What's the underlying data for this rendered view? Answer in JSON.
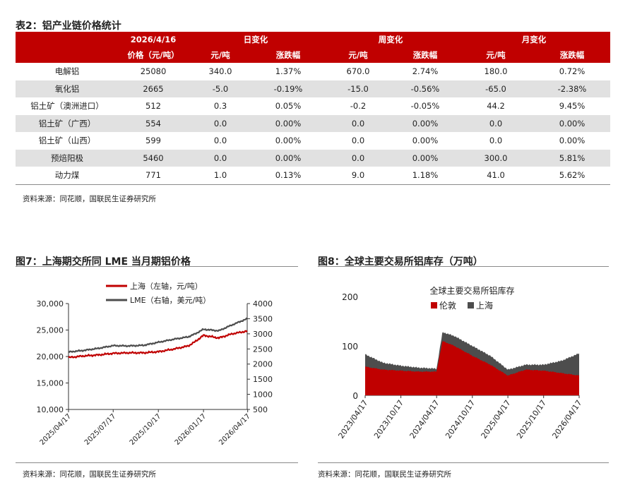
{
  "table": {
    "title": "表2：铝产业链价格统计",
    "header1": [
      "2026/4/16",
      "日变化",
      "周变化",
      "月变化"
    ],
    "header2": [
      "价格（元/吨）",
      "元/吨",
      "涨跌幅",
      "元/吨",
      "涨跌幅",
      "元/吨",
      "涨跌幅"
    ],
    "rows": [
      [
        "电解铝",
        "25080",
        "340.0",
        "1.37%",
        "670.0",
        "2.74%",
        "180.0",
        "0.72%"
      ],
      [
        "氧化铝",
        "2665",
        "-5.0",
        "-0.19%",
        "-15.0",
        "-0.56%",
        "-65.0",
        "-2.38%"
      ],
      [
        "铝土矿（澳洲进口）",
        "512",
        "0.3",
        "0.05%",
        "-0.2",
        "-0.05%",
        "44.2",
        "9.45%"
      ],
      [
        "铝土矿（广西）",
        "554",
        "0.0",
        "0.00%",
        "0.0",
        "0.00%",
        "0.0",
        "0.00%"
      ],
      [
        "铝土矿（山西）",
        "599",
        "0.0",
        "0.00%",
        "0.0",
        "0.00%",
        "0.0",
        "0.00%"
      ],
      [
        "预焙阳极",
        "5460",
        "0.0",
        "0.00%",
        "0.0",
        "0.00%",
        "300.0",
        "5.81%"
      ],
      [
        "动力煤",
        "771",
        "1.0",
        "0.13%",
        "9.0",
        "1.18%",
        "41.0",
        "5.62%"
      ]
    ],
    "source": "资料来源：同花顺，国联民生证券研究所"
  },
  "fig7": {
    "title": "图7：上海期交所同 LME 当月期铝价格",
    "source": "资料来源：同花顺，国联民生证券研究所"
  },
  "fig8": {
    "title": "图8：全球主要交易所铝库存（万吨）",
    "source": "资料来源：同花顺，国联民生证券研究所"
  },
  "colors": {
    "red": "#c00000",
    "gray": "#4d4d4d",
    "zebra": "#e1e1e1"
  },
  "chart_data": [
    {
      "type": "line",
      "title": "",
      "x": [
        "2025/04/17",
        "2025/05/17",
        "2025/06/17",
        "2025/07/17",
        "2025/08/17",
        "2025/09/17",
        "2025/10/17",
        "2025/11/17",
        "2025/12/17",
        "2025/12/31",
        "2026/01/17",
        "2026/02/17",
        "2026/03/17",
        "2026/04/16"
      ],
      "xticks": [
        "2025/04/17",
        "2025/07/17",
        "2025/10/17",
        "2026/01/17",
        "2026/04/17"
      ],
      "series": [
        {
          "name": "上海（左轴，元/吨）",
          "axis": "left",
          "color": "#c00000",
          "values": [
            19800,
            20100,
            20300,
            20600,
            20700,
            20700,
            20900,
            21400,
            22000,
            22800,
            24000,
            23500,
            24300,
            24800
          ]
        },
        {
          "name": "LME（右轴，美元/吨）",
          "axis": "right",
          "color": "#4d4d4d",
          "values": [
            2400,
            2450,
            2520,
            2610,
            2600,
            2620,
            2720,
            2820,
            2900,
            3000,
            3150,
            3100,
            3300,
            3500
          ]
        }
      ],
      "y_left": {
        "min": 10000,
        "max": 30000,
        "ticks": [
          "10,000",
          "15,000",
          "20,000",
          "25,000",
          "30,000"
        ]
      },
      "y_right": {
        "min": 500,
        "max": 4000,
        "ticks": [
          "500",
          "1000",
          "1500",
          "2000",
          "2500",
          "3000",
          "3500",
          "4000"
        ]
      }
    },
    {
      "type": "area",
      "title": "全球主要交易所铝库存",
      "x": [
        "2023/04/17",
        "2023/07/17",
        "2023/10/17",
        "2024/01/17",
        "2024/04/17",
        "2024/05/17",
        "2024/07/17",
        "2024/10/17",
        "2025/01/17",
        "2025/04/17",
        "2025/07/17",
        "2025/10/17",
        "2026/01/17",
        "2026/04/17"
      ],
      "xticks": [
        "2023/04/17",
        "2023/10/17",
        "2024/04/17",
        "2024/10/17",
        "2025/04/17",
        "2025/10/17",
        "2026/04/17"
      ],
      "series": [
        {
          "name": "伦敦",
          "color": "#c00000",
          "values": [
            58,
            52,
            50,
            48,
            48,
            110,
            100,
            80,
            62,
            40,
            52,
            50,
            45,
            40
          ]
        },
        {
          "name": "上海",
          "color": "#4d4d4d",
          "values": [
            25,
            14,
            10,
            8,
            6,
            18,
            20,
            20,
            18,
            12,
            10,
            12,
            25,
            45
          ]
        }
      ],
      "y": {
        "min": 0,
        "max": 200,
        "ticks": [
          "0",
          "100",
          "200"
        ]
      }
    }
  ]
}
